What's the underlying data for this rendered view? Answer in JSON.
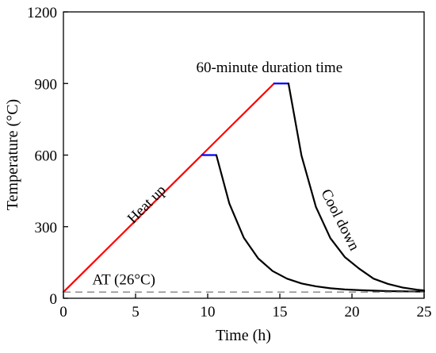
{
  "chart_data": {
    "type": "line",
    "title": "",
    "xlabel": "Time (h)",
    "ylabel": "Temperature (°C)",
    "xlim": [
      0,
      25
    ],
    "ylim": [
      0,
      1200
    ],
    "x_ticks": [
      0,
      5,
      10,
      15,
      20,
      25
    ],
    "y_ticks": [
      0,
      300,
      600,
      900,
      1200
    ],
    "grid": false,
    "legend": "none",
    "colors": {
      "heat_up": "#ff0000",
      "hold": "#0000ff",
      "cool_down": "#000000",
      "ambient": "#808080",
      "axis": "#000000"
    },
    "series": [
      {
        "kind": "heat_up",
        "x": [
          0,
          14.6
        ],
        "y": [
          26,
          900
        ]
      },
      {
        "kind": "hold",
        "x": [
          9.6,
          10.6
        ],
        "y": [
          600,
          600
        ]
      },
      {
        "kind": "hold",
        "x": [
          14.6,
          15.6
        ],
        "y": [
          900,
          900
        ]
      },
      {
        "kind": "cool_down",
        "x": [
          10.6,
          11.5,
          12.5,
          13.5,
          14.5,
          15.5,
          16.5,
          17.5,
          18.5,
          19.5,
          20.5,
          21.5,
          22.5,
          23.5,
          24.5,
          25
        ],
        "y": [
          600,
          397,
          254,
          167,
          114,
          82,
          62,
          50,
          42,
          37,
          34,
          32,
          30,
          29,
          28,
          28
        ]
      },
      {
        "kind": "cool_down",
        "x": [
          15.6,
          16.5,
          17.5,
          18.5,
          19.5,
          20.5,
          21.5,
          22.5,
          23.5,
          24.5,
          25
        ],
        "y": [
          900,
          598,
          383,
          252,
          173,
          124,
          82,
          60,
          45,
          36,
          33
        ]
      },
      {
        "kind": "ambient",
        "x": [
          0,
          25
        ],
        "y": [
          26,
          26
        ]
      }
    ],
    "annotations": [
      {
        "text": "Heat up",
        "x": 6.0,
        "y": 380,
        "rotate": -45,
        "anchor": "middle"
      },
      {
        "text": "60-minute duration time",
        "x": 9.2,
        "y": 948,
        "rotate": 0,
        "anchor": "start"
      },
      {
        "text": "Cool down",
        "x": 18.9,
        "y": 320,
        "rotate": 63,
        "anchor": "middle"
      },
      {
        "text": "AT (26°C)",
        "x": 2.0,
        "y": 58,
        "rotate": 0,
        "anchor": "start"
      }
    ]
  }
}
